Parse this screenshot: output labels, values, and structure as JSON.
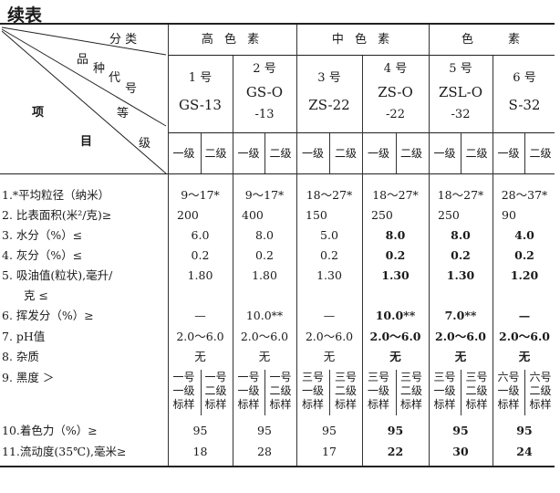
{
  "title": "续表",
  "header": {
    "corner": {
      "category": "分 类",
      "variety": [
        "品",
        "种",
        "代",
        "号"
      ],
      "grade": [
        "等",
        "级"
      ],
      "item": [
        "项",
        "目"
      ]
    },
    "groups": [
      "高 色 素",
      "中 色 素",
      "色　　素"
    ],
    "products": [
      {
        "no": "1 号",
        "code": "GS-13"
      },
      {
        "no": "2 号",
        "code": "GS-O",
        "code2": "-13"
      },
      {
        "no": "3 号",
        "code": "ZS-22"
      },
      {
        "no": "4 号",
        "code": "ZS-O",
        "code2": "-22"
      },
      {
        "no": "5 号",
        "code": "ZSL-O",
        "code2": "-32"
      },
      {
        "no": "6 号",
        "code": "S-32"
      }
    ],
    "grades": [
      "一级",
      "二级"
    ]
  },
  "rows": [
    {
      "label": "1.*平均粒径（纳米）",
      "values": [
        "9～17*",
        "9～17*",
        "18～27*",
        "18～27*",
        "18～27*",
        "28～37*"
      ]
    },
    {
      "label": "2. 比表面积(米²/克)≥",
      "values": [
        "200",
        "400",
        "150",
        "250",
        "250",
        "90"
      ]
    },
    {
      "label": "3. 水分（%）≤",
      "values": [
        "6.0",
        "8.0",
        "5.0",
        "8.0",
        "8.0",
        "4.0"
      ]
    },
    {
      "label": "4. 灰分（%）≤",
      "values": [
        "0.2",
        "0.2",
        "0.2",
        "0.2",
        "0.2",
        "0.2"
      ]
    },
    {
      "label": "5. 吸油值(粒状),毫升/",
      "label2": "克 ≤",
      "values": [
        "1.80",
        "1.80",
        "1.30",
        "1.30",
        "1.30",
        "1.20"
      ]
    },
    {
      "label": "6. 挥发分（%）≥",
      "values": [
        "—",
        "10.0**",
        "—",
        "10.0**",
        "7.0**",
        "—"
      ]
    },
    {
      "label": "7. pH值",
      "values": [
        "2.0～6.0",
        "2.0～6.0",
        "2.0～6.0",
        "2.0～6.0",
        "2.0～6.0",
        "2.0～6.0"
      ]
    },
    {
      "label": "8. 杂质",
      "values": [
        "无",
        "无",
        "无",
        "无",
        "无",
        "无"
      ]
    },
    {
      "label": "9. 黑度 ＞",
      "split": [
        [
          "一号\n一级\n标样",
          "一号\n二级\n标样"
        ],
        [
          "一号\n一级\n标样",
          "一号\n二级\n标样"
        ],
        [
          "三号\n一级\n标样",
          "三号\n二级\n标样"
        ],
        [
          "三号\n一级\n标样",
          "三号\n二级\n标样"
        ],
        [
          "三号\n一级\n标样",
          "三号\n二级\n标样"
        ],
        [
          "六号\n一级\n标样",
          "六号\n二级\n标样"
        ]
      ]
    },
    {
      "label": "10.着色力（%）≥",
      "values": [
        "95",
        "95",
        "95",
        "95",
        "95",
        "95"
      ]
    },
    {
      "label": "11.流动度(35℃),毫米≥",
      "values": [
        "18",
        "28",
        "17",
        "22",
        "30",
        "24"
      ]
    }
  ]
}
